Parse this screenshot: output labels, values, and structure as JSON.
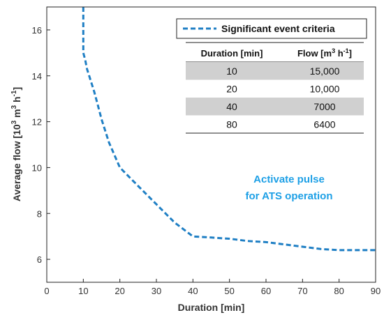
{
  "chart_data": {
    "type": "line",
    "title": "",
    "xlabel": "Duration [min]",
    "ylabel_parts": {
      "base": "Average flow [10",
      "exp1": "3",
      "mid": " m",
      "exp2": "3",
      "mid2": " h",
      "exp3": "-1",
      "end": "]"
    },
    "xlim": [
      0,
      90
    ],
    "ylim": [
      5,
      17
    ],
    "xticks": [
      "0",
      "10",
      "20",
      "30",
      "40",
      "50",
      "60",
      "70",
      "80",
      "90"
    ],
    "yticks": [
      "6",
      "8",
      "10",
      "12",
      "14",
      "16"
    ],
    "grid": false,
    "legend_position": "top-right",
    "series": [
      {
        "name": "Significant event criteria",
        "color": "#1f7fc4",
        "style": "dashed",
        "x": [
          10,
          10,
          10.5,
          11,
          12,
          13,
          14,
          15,
          17,
          20,
          25,
          30,
          35,
          40,
          45,
          50,
          55,
          60,
          65,
          70,
          75,
          80,
          85,
          90
        ],
        "y": [
          17,
          15.0,
          14.7,
          14.3,
          13.8,
          13.3,
          12.7,
          12.1,
          11.1,
          10.0,
          9.2,
          8.4,
          7.6,
          7.0,
          6.95,
          6.9,
          6.8,
          6.75,
          6.65,
          6.55,
          6.45,
          6.4,
          6.4,
          6.4
        ]
      }
    ],
    "table": {
      "headers": {
        "duration": "Duration [min]",
        "flow_base": "Flow [m",
        "flow_exp1": "3",
        "flow_mid": " h",
        "flow_exp2": "-1",
        "flow_end": "]"
      },
      "rows": [
        {
          "duration": "10",
          "flow": "15,000",
          "shaded": true
        },
        {
          "duration": "20",
          "flow": "10,000",
          "shaded": false
        },
        {
          "duration": "40",
          "flow": "7000",
          "shaded": true
        },
        {
          "duration": "80",
          "flow": "6400",
          "shaded": false
        }
      ],
      "shade_color": "#d0d0d0"
    },
    "annotation": {
      "line1": "Activate pulse",
      "line2": "for ATS operation",
      "color": "#1ea0e6"
    }
  }
}
